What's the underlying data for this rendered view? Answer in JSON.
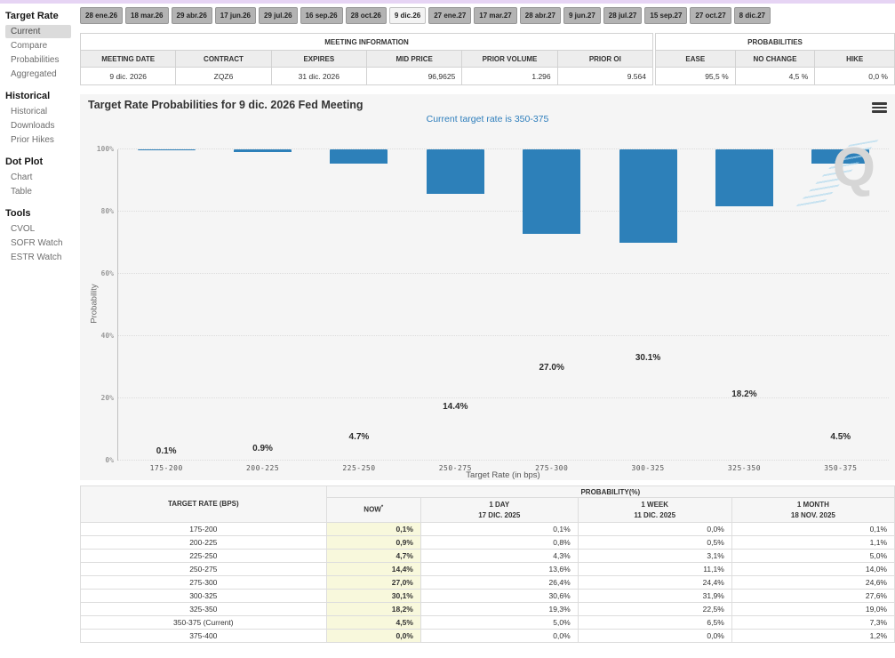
{
  "header": {
    "top_strip_color": "#e6d4f4"
  },
  "sidebar": {
    "sections": [
      {
        "heading": "Target Rate",
        "items": [
          {
            "label": "Current",
            "selected": true
          },
          {
            "label": "Compare",
            "selected": false
          },
          {
            "label": "Probabilities",
            "selected": false
          },
          {
            "label": "Aggregated",
            "selected": false
          }
        ]
      },
      {
        "heading": "Historical",
        "items": [
          {
            "label": "Historical",
            "selected": false
          },
          {
            "label": "Downloads",
            "selected": false
          },
          {
            "label": "Prior Hikes",
            "selected": false
          }
        ]
      },
      {
        "heading": "Dot Plot",
        "items": [
          {
            "label": "Chart",
            "selected": false
          },
          {
            "label": "Table",
            "selected": false
          }
        ]
      },
      {
        "heading": "Tools",
        "items": [
          {
            "label": "CVOL",
            "selected": false
          },
          {
            "label": "SOFR Watch",
            "selected": false
          },
          {
            "label": "ESTR Watch",
            "selected": false
          }
        ]
      }
    ]
  },
  "meeting_tabs": {
    "selected": "9 dic.26",
    "tabs": [
      "28 ene.26",
      "18 mar.26",
      "29 abr.26",
      "17 jun.26",
      "29 jul.26",
      "16 sep.26",
      "28 oct.26",
      "9 dic.26",
      "27 ene.27",
      "17 mar.27",
      "28 abr.27",
      "9 jun.27",
      "28 jul.27",
      "15 sep.27",
      "27 oct.27",
      "8 dic.27"
    ]
  },
  "meeting_info": {
    "title": "MEETING INFORMATION",
    "columns": [
      "MEETING DATE",
      "CONTRACT",
      "EXPIRES",
      "MID PRICE",
      "PRIOR VOLUME",
      "PRIOR OI"
    ],
    "values": [
      "9 dic. 2026",
      "ZQZ6",
      "31 dic. 2026",
      "96,9625",
      "1.296",
      "9.564"
    ],
    "right_aligned_from": 3
  },
  "probabilities_summary": {
    "title": "PROBABILITIES",
    "columns": [
      "EASE",
      "NO CHANGE",
      "HIKE"
    ],
    "values": [
      "95,5 %",
      "4,5 %",
      "0,0 %"
    ],
    "right_aligned_from": 0
  },
  "chart": {
    "watermark_letter": "Q"
  },
  "chart_data": {
    "type": "bar",
    "title": "Target Rate Probabilities for 9 dic. 2026 Fed Meeting",
    "subtitle": "Current target rate is 350-375",
    "categories": [
      "175-200",
      "200-225",
      "225-250",
      "250-275",
      "275-300",
      "300-325",
      "325-350",
      "350-375"
    ],
    "values": [
      0.1,
      0.9,
      4.7,
      14.4,
      27.0,
      30.1,
      18.2,
      4.5
    ],
    "bar_labels": [
      "0.1%",
      "0.9%",
      "4.7%",
      "14.4%",
      "27.0%",
      "30.1%",
      "18.2%",
      "4.5%"
    ],
    "xlabel": "Target Rate (in bps)",
    "ylabel": "Probability",
    "ylim": [
      0,
      100
    ],
    "ytick_labels": [
      "0%",
      "20%",
      "40%",
      "60%",
      "80%",
      "100%"
    ],
    "ytick_values": [
      0,
      20,
      40,
      60,
      80,
      100
    ],
    "grid": "horizontal-dotted",
    "legend": "none",
    "bar_color": "#2d80b9"
  },
  "probability_table": {
    "col1_header": "TARGET RATE (BPS)",
    "group_header": "PROBABILITY(%)",
    "columns": [
      {
        "line1": "NOW",
        "sup": "*",
        "line2": ""
      },
      {
        "line1": "1 DAY",
        "sup": "",
        "line2": "17 DIC. 2025"
      },
      {
        "line1": "1 WEEK",
        "sup": "",
        "line2": "11 DIC. 2025"
      },
      {
        "line1": "1 MONTH",
        "sup": "",
        "line2": "18 NOV. 2025"
      }
    ],
    "rows": [
      {
        "rate": "175-200",
        "now": "0,1%",
        "day1": "0,1%",
        "week1": "0,0%",
        "month1": "0,1%"
      },
      {
        "rate": "200-225",
        "now": "0,9%",
        "day1": "0,8%",
        "week1": "0,5%",
        "month1": "1,1%"
      },
      {
        "rate": "225-250",
        "now": "4,7%",
        "day1": "4,3%",
        "week1": "3,1%",
        "month1": "5,0%"
      },
      {
        "rate": "250-275",
        "now": "14,4%",
        "day1": "13,6%",
        "week1": "11,1%",
        "month1": "14,0%"
      },
      {
        "rate": "275-300",
        "now": "27,0%",
        "day1": "26,4%",
        "week1": "24,4%",
        "month1": "24,6%"
      },
      {
        "rate": "300-325",
        "now": "30,1%",
        "day1": "30,6%",
        "week1": "31,9%",
        "month1": "27,6%"
      },
      {
        "rate": "325-350",
        "now": "18,2%",
        "day1": "19,3%",
        "week1": "22,5%",
        "month1": "19,0%"
      },
      {
        "rate": "350-375 (Current)",
        "now": "4,5%",
        "day1": "5,0%",
        "week1": "6,5%",
        "month1": "7,3%"
      },
      {
        "rate": "375-400",
        "now": "0,0%",
        "day1": "0,0%",
        "week1": "0,0%",
        "month1": "1,2%"
      }
    ]
  }
}
